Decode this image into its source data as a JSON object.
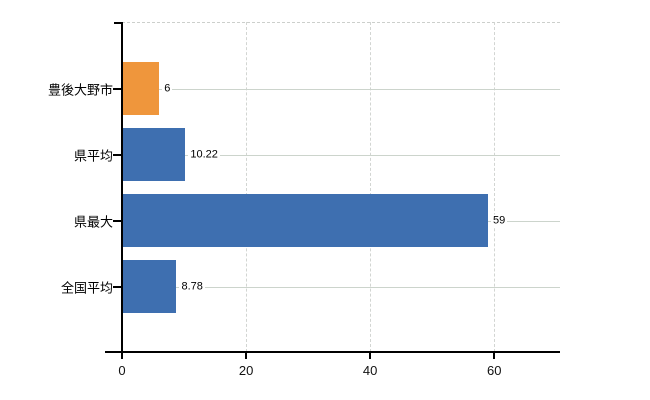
{
  "chart_data": {
    "type": "bar",
    "orientation": "horizontal",
    "title": "",
    "categories": [
      "豊後大野市",
      "県平均",
      "県最大",
      "全国平均"
    ],
    "values": [
      6,
      10.22,
      59,
      8.78
    ],
    "value_labels": [
      "6",
      "10.22",
      "59",
      "8.78"
    ],
    "bar_colors": [
      "#ef963c",
      "#3e6fb0",
      "#3e6fb0",
      "#3e6fb0"
    ],
    "xticks": [
      0,
      20,
      40,
      60
    ],
    "xtick_labels": [
      "0",
      "20",
      "40",
      "60"
    ],
    "xlim": [
      0,
      70.6
    ],
    "grid": true,
    "legend": "none",
    "colors": {
      "highlight_bar": "#ef963c",
      "default_bar": "#3e6fb0",
      "gridline": "#ccd4cc",
      "axis": "#000000",
      "background": "#ffffff"
    }
  }
}
